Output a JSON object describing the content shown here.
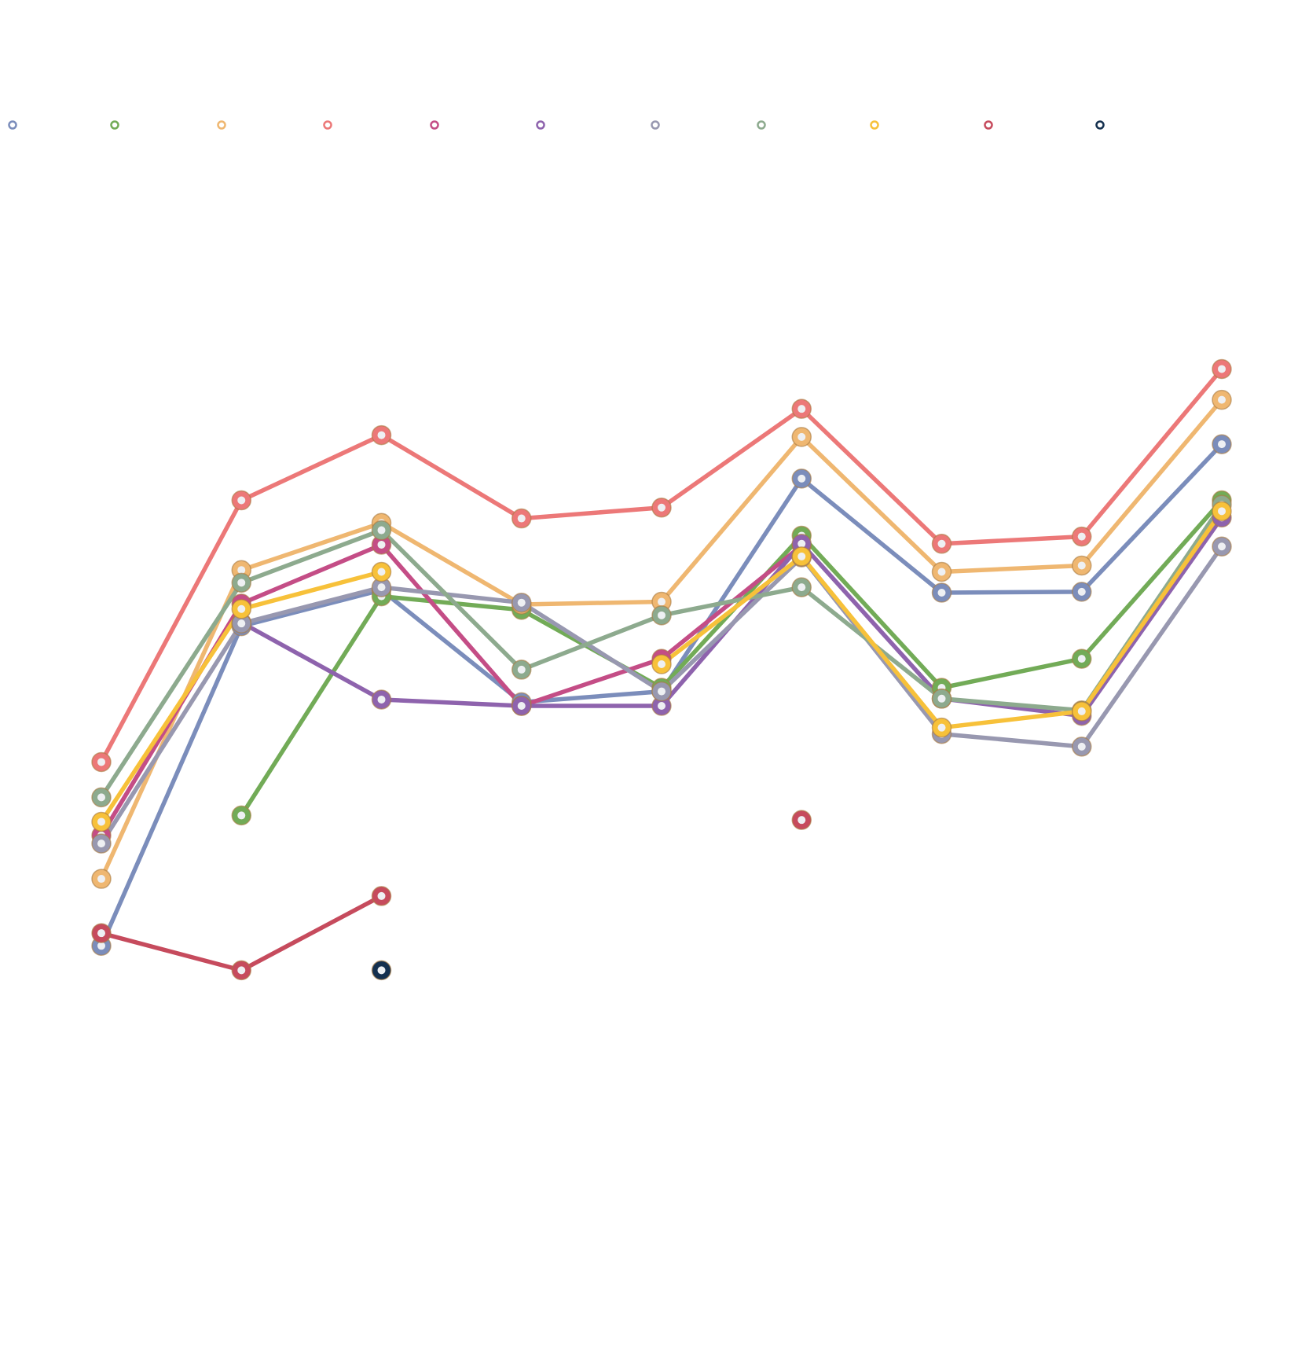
{
  "chart_data": {
    "type": "line",
    "title": "",
    "xlabel": "",
    "ylabel": "",
    "ylim": [
      0,
      1
    ],
    "grid": true,
    "legend_position": "top",
    "categories": [
      "",
      "",
      "",
      "",
      "",
      "",
      "",
      "",
      ""
    ],
    "series": [
      {
        "color": "#7b8dbb",
        "values": [
          0.202,
          0.555,
          0.595,
          0.471,
          0.483,
          0.718,
          0.592,
          0.593,
          0.756
        ]
      },
      {
        "color": "#72ab57",
        "values": [
          null,
          0.346,
          0.588,
          0.573,
          0.487,
          0.655,
          0.487,
          0.519,
          0.694
        ]
      },
      {
        "color": "#efb771",
        "values": [
          0.276,
          0.617,
          0.669,
          0.579,
          0.582,
          0.764,
          0.615,
          0.622,
          0.805
        ]
      },
      {
        "color": "#ec7878",
        "values": [
          0.405,
          0.694,
          0.766,
          0.674,
          0.686,
          0.795,
          0.646,
          0.654,
          0.839
        ]
      },
      {
        "color": "#c44d86",
        "values": [
          0.324,
          0.58,
          0.645,
          0.467,
          0.519,
          0.644,
          null,
          null,
          null
        ]
      },
      {
        "color": "#8e63ad",
        "values": [
          null,
          0.559,
          0.474,
          0.467,
          0.467,
          0.646,
          0.475,
          0.456,
          0.675
        ]
      },
      {
        "color": "#9898b0",
        "values": [
          0.315,
          0.558,
          0.598,
          0.581,
          0.483,
          0.631,
          0.436,
          0.422,
          0.643
        ]
      },
      {
        "color": "#8daa8e",
        "values": [
          0.366,
          0.603,
          0.661,
          0.507,
          0.567,
          0.598,
          0.475,
          0.462,
          0.689
        ]
      },
      {
        "color": "#f7c13a",
        "values": [
          0.339,
          0.574,
          0.615,
          null,
          0.513,
          0.632,
          0.443,
          0.461,
          0.682
        ]
      },
      {
        "color": "#c64b5d",
        "values": [
          0.216,
          0.175,
          0.257,
          null,
          null,
          0.341,
          null,
          null,
          null
        ]
      },
      {
        "color": "#14304f",
        "values": [
          null,
          null,
          0.175,
          null,
          null,
          null,
          null,
          null,
          null
        ]
      }
    ]
  }
}
